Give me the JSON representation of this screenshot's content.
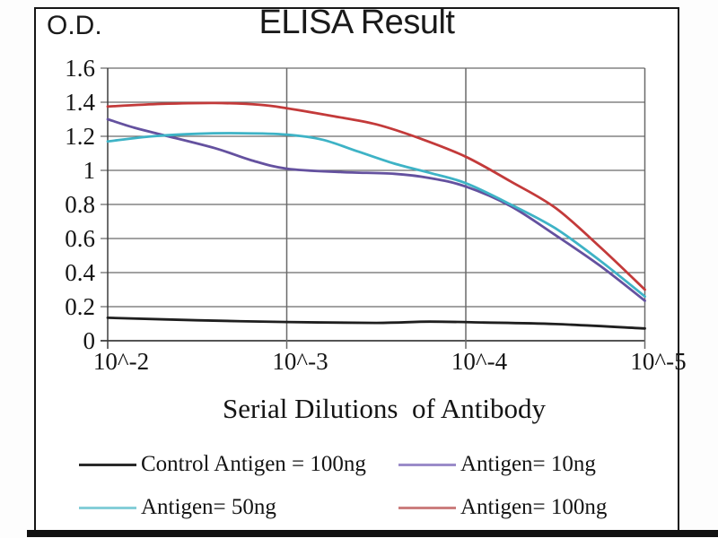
{
  "chart_data": {
    "type": "line",
    "title": "ELISA Result",
    "ylabel": "O.D.",
    "xlabel": "Serial Dilutions  of Antibody",
    "x_tick_labels": [
      "10^-2",
      "10^-3",
      "10^-4",
      "10^-5"
    ],
    "y_tick_labels": [
      "0",
      "0.2",
      "0.4",
      "0.6",
      "0.8",
      "1",
      "1.2",
      "1.4",
      "1.6"
    ],
    "ylim": [
      0,
      1.6
    ],
    "x_axis_note": "serial dilution, log scale; x encoded as decades right of 10^-2",
    "grid": true,
    "legend_position": "bottom",
    "series": [
      {
        "name": "Control Antigen = 100ng",
        "color": "#1f1f1f",
        "legend_color": "#2a2a2a",
        "points": [
          [
            0,
            0.135
          ],
          [
            0.5,
            0.12
          ],
          [
            1,
            0.11
          ],
          [
            1.5,
            0.105
          ],
          [
            1.8,
            0.112
          ],
          [
            2.1,
            0.107
          ],
          [
            2.5,
            0.098
          ],
          [
            3,
            0.072
          ]
        ]
      },
      {
        "name": "Antigen= 10ng",
        "color": "#64519f",
        "legend_color": "#9b8cc9",
        "points": [
          [
            0,
            1.3
          ],
          [
            0.15,
            1.25
          ],
          [
            0.3,
            1.21
          ],
          [
            0.6,
            1.13
          ],
          [
            0.8,
            1.06
          ],
          [
            1,
            1.01
          ],
          [
            1.3,
            0.99
          ],
          [
            1.6,
            0.98
          ],
          [
            1.8,
            0.955
          ],
          [
            2,
            0.905
          ],
          [
            2.25,
            0.79
          ],
          [
            2.5,
            0.62
          ],
          [
            2.75,
            0.44
          ],
          [
            3,
            0.235
          ]
        ]
      },
      {
        "name": "Antigen= 50ng",
        "color": "#3eb3c6",
        "legend_color": "#85ced8",
        "points": [
          [
            0,
            1.17
          ],
          [
            0.25,
            1.2
          ],
          [
            0.5,
            1.215
          ],
          [
            0.75,
            1.218
          ],
          [
            1,
            1.21
          ],
          [
            1.2,
            1.18
          ],
          [
            1.4,
            1.11
          ],
          [
            1.6,
            1.04
          ],
          [
            1.8,
            0.985
          ],
          [
            2,
            0.925
          ],
          [
            2.25,
            0.8
          ],
          [
            2.5,
            0.66
          ],
          [
            2.75,
            0.47
          ],
          [
            3,
            0.26
          ]
        ]
      },
      {
        "name": "Antigen= 100ng",
        "color": "#c33a3a",
        "legend_color": "#cb7e7e",
        "points": [
          [
            0,
            1.375
          ],
          [
            0.3,
            1.39
          ],
          [
            0.6,
            1.395
          ],
          [
            0.85,
            1.385
          ],
          [
            1,
            1.365
          ],
          [
            1.25,
            1.32
          ],
          [
            1.5,
            1.27
          ],
          [
            1.75,
            1.185
          ],
          [
            2,
            1.08
          ],
          [
            2.25,
            0.935
          ],
          [
            2.5,
            0.78
          ],
          [
            2.75,
            0.55
          ],
          [
            3,
            0.3
          ]
        ]
      }
    ],
    "legend_order": [
      "Control Antigen = 100ng",
      "Antigen= 10ng",
      "Antigen= 50ng",
      "Antigen= 100ng"
    ]
  }
}
